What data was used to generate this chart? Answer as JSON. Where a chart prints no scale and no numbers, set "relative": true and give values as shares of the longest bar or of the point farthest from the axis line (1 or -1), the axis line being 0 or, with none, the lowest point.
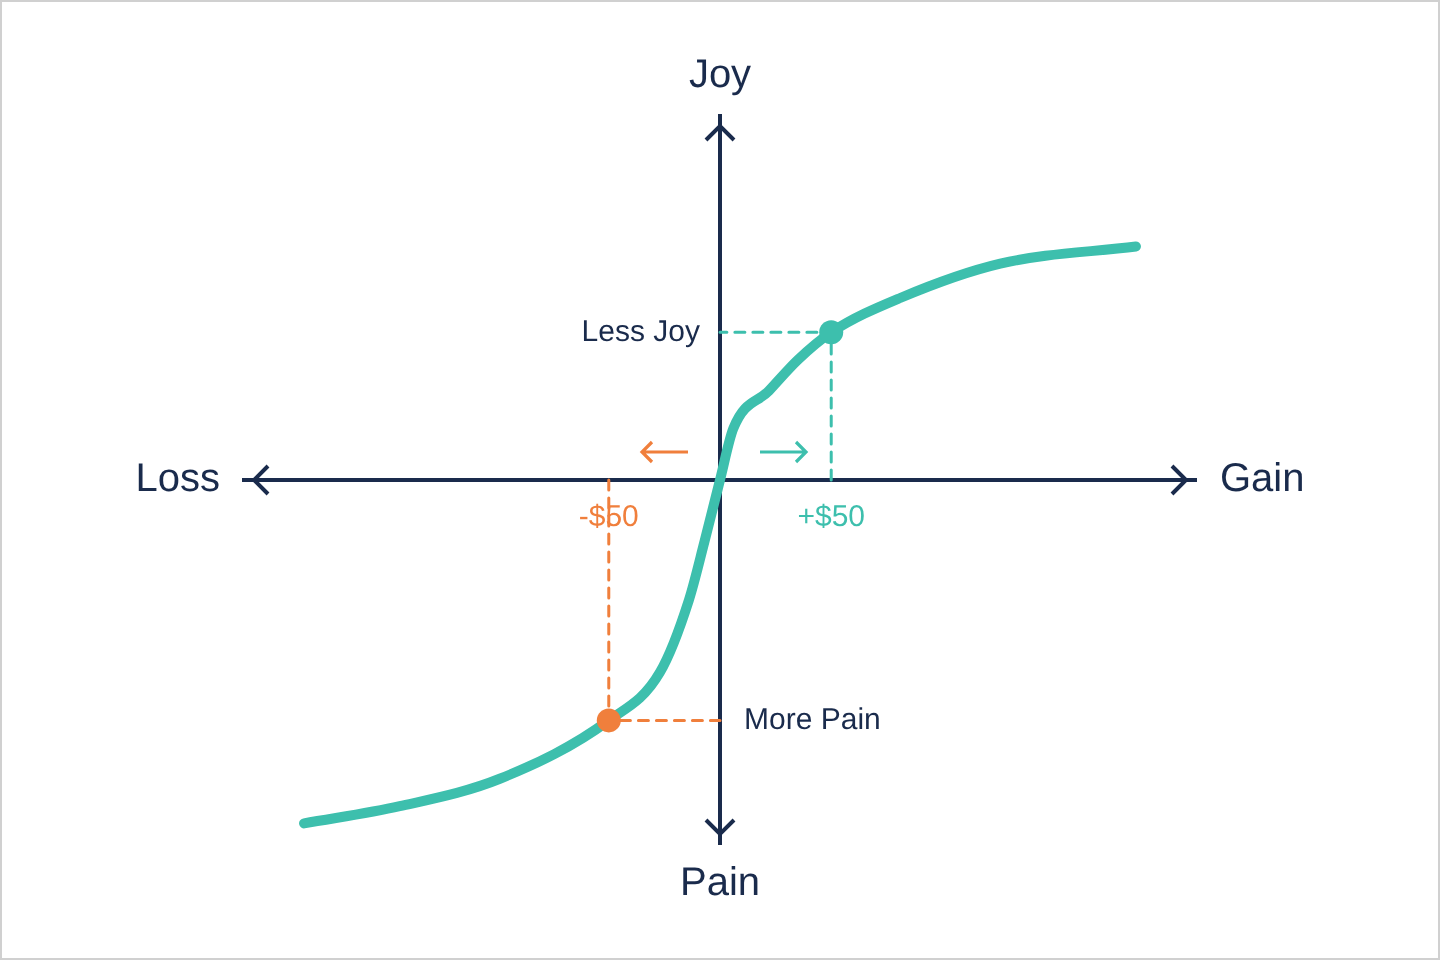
{
  "chart_data": {
    "type": "line",
    "relative": true,
    "xlim": [
      -214,
      214
    ],
    "xticks": [
      {
        "value": -50,
        "label": "-$50"
      },
      {
        "value": 50,
        "label": "+$50"
      }
    ],
    "tick_labels": "x",
    "grid": false,
    "legend": false,
    "marker": "none",
    "series": [
      {
        "color": "#3dbfad",
        "x": [
          -187,
          -144,
          -99,
          -50,
          -27,
          -14,
          -7,
          0,
          6,
          22,
          35,
          50,
          81,
          126,
          187
        ],
        "values": [
          -1,
          -0.95,
          -0.87,
          -0.7,
          -0.56,
          -0.35,
          -0.18,
          0,
          0.15,
          0.26,
          0.35,
          0.43,
          0.53,
          0.63,
          0.68
        ]
      },
      {
        "color": "#f07f3c",
        "line_style": "dashed",
        "x": [
          -50,
          -50,
          0
        ],
        "values": [
          0,
          -0.7,
          -0.7
        ]
      },
      {
        "color": "#3dbfad",
        "line_style": "dashed",
        "x": [
          50,
          50,
          0
        ],
        "values": [
          0,
          0.43,
          0.43
        ]
      },
      {
        "type": "scatter",
        "color": "#f07f3c",
        "marker": "circle",
        "x": [
          -50
        ],
        "values": [
          -0.7
        ]
      },
      {
        "type": "scatter",
        "color": "#3dbfad",
        "marker": "circle",
        "x": [
          50
        ],
        "values": [
          0.43
        ]
      }
    ],
    "annotations": [
      "Loss",
      "Gain",
      "Joy",
      "Pain",
      {
        "text": "Less Joy",
        "x": 0,
        "y": 0.43
      },
      {
        "text": "More Pain",
        "x": 0,
        "y": -0.7
      }
    ]
  }
}
